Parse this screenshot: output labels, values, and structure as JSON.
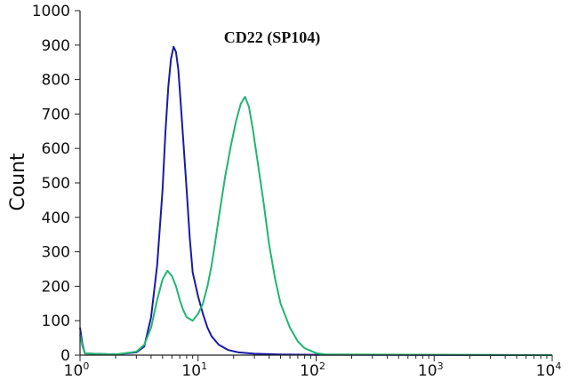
{
  "chart_data": {
    "type": "line",
    "title": "CD22 (SP104)",
    "xlabel": "",
    "ylabel": "Count",
    "xscale": "log",
    "xlim": [
      1,
      10000
    ],
    "ylim": [
      0,
      1000
    ],
    "grid": false,
    "legend": "none",
    "x_ticks": [
      {
        "base": "10",
        "exp": "0",
        "value": 1
      },
      {
        "base": "10",
        "exp": "1",
        "value": 10
      },
      {
        "base": "10",
        "exp": "2",
        "value": 100
      },
      {
        "base": "10",
        "exp": "3",
        "value": 1000
      },
      {
        "base": "10",
        "exp": "4",
        "value": 10000
      }
    ],
    "y_ticks": [
      "0",
      "100",
      "200",
      "300",
      "400",
      "500",
      "600",
      "700",
      "800",
      "900",
      "1000"
    ],
    "series": [
      {
        "color": "#1a1aa6",
        "x": [
          1.0,
          1.05,
          1.1,
          2.0,
          3.0,
          3.5,
          4.0,
          4.5,
          5.0,
          5.3,
          5.6,
          5.9,
          6.2,
          6.5,
          6.8,
          7.1,
          7.5,
          8.0,
          8.5,
          9.0,
          10.0,
          11.0,
          12.0,
          13.0,
          15.0,
          18.0,
          22.0,
          30.0,
          50.0,
          100.0,
          10000.0
        ],
        "y": [
          80,
          30,
          5,
          2,
          8,
          25,
          110,
          260,
          480,
          650,
          780,
          860,
          895,
          880,
          830,
          740,
          620,
          480,
          340,
          240,
          170,
          120,
          80,
          55,
          30,
          15,
          8,
          4,
          2,
          1,
          0
        ]
      },
      {
        "color": "#22b573",
        "x": [
          1.0,
          1.05,
          1.1,
          2.0,
          3.0,
          3.5,
          4.0,
          4.5,
          5.0,
          5.5,
          6.0,
          6.5,
          7.0,
          7.5,
          8.0,
          9.0,
          10.0,
          11.0,
          12.0,
          13.0,
          14.0,
          15.0,
          17.0,
          19.0,
          21.0,
          23.0,
          25.0,
          27.0,
          29.0,
          32.0,
          36.0,
          40.0,
          45.0,
          50.0,
          60.0,
          70.0,
          80.0,
          100.0,
          120.0,
          10000.0
        ],
        "y": [
          60,
          25,
          5,
          2,
          10,
          30,
          80,
          160,
          220,
          245,
          230,
          200,
          160,
          130,
          110,
          100,
          120,
          150,
          200,
          260,
          330,
          400,
          520,
          610,
          680,
          730,
          750,
          720,
          660,
          560,
          440,
          320,
          220,
          150,
          80,
          40,
          20,
          6,
          2,
          0
        ]
      }
    ]
  }
}
